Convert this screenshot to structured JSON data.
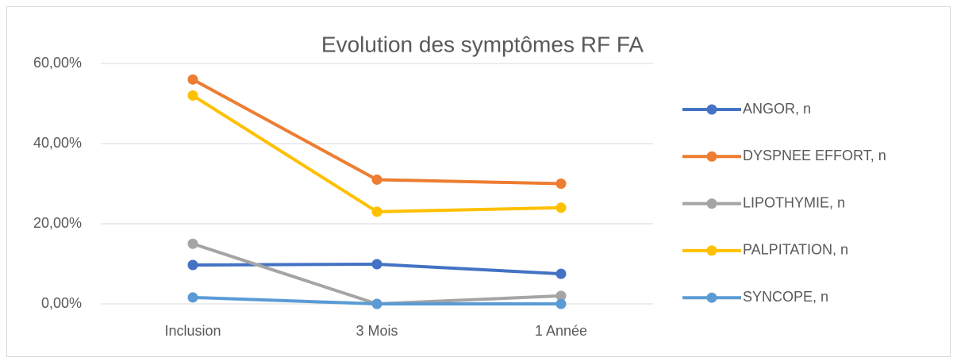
{
  "chart_data": {
    "type": "line",
    "title": "Evolution des symptômes RF FA",
    "categories": [
      "Inclusion",
      "3 Mois",
      "1 Année"
    ],
    "series": [
      {
        "name": "ANGOR, n",
        "color": "#4472c4",
        "values": [
          9.7,
          9.9,
          7.5
        ]
      },
      {
        "name": "DYSPNEE EFFORT, n",
        "color": "#ed7d31",
        "values": [
          56,
          31,
          30
        ]
      },
      {
        "name": "LIPOTHYMIE, n",
        "color": "#a5a5a5",
        "values": [
          15,
          0,
          2
        ]
      },
      {
        "name": "PALPITATION, n",
        "color": "#ffc000",
        "values": [
          52,
          23,
          24
        ]
      },
      {
        "name": "SYNCOPE, n",
        "color": "#5b9bd5",
        "values": [
          1.6,
          0,
          0
        ]
      }
    ],
    "ylim": [
      0,
      60
    ],
    "yticks": [
      {
        "value": 0,
        "label": "0,00%"
      },
      {
        "value": 20,
        "label": "20,00%"
      },
      {
        "value": 40,
        "label": "40,00%"
      },
      {
        "value": 60,
        "label": "60,00%"
      }
    ],
    "grid": true,
    "legend": "right"
  }
}
